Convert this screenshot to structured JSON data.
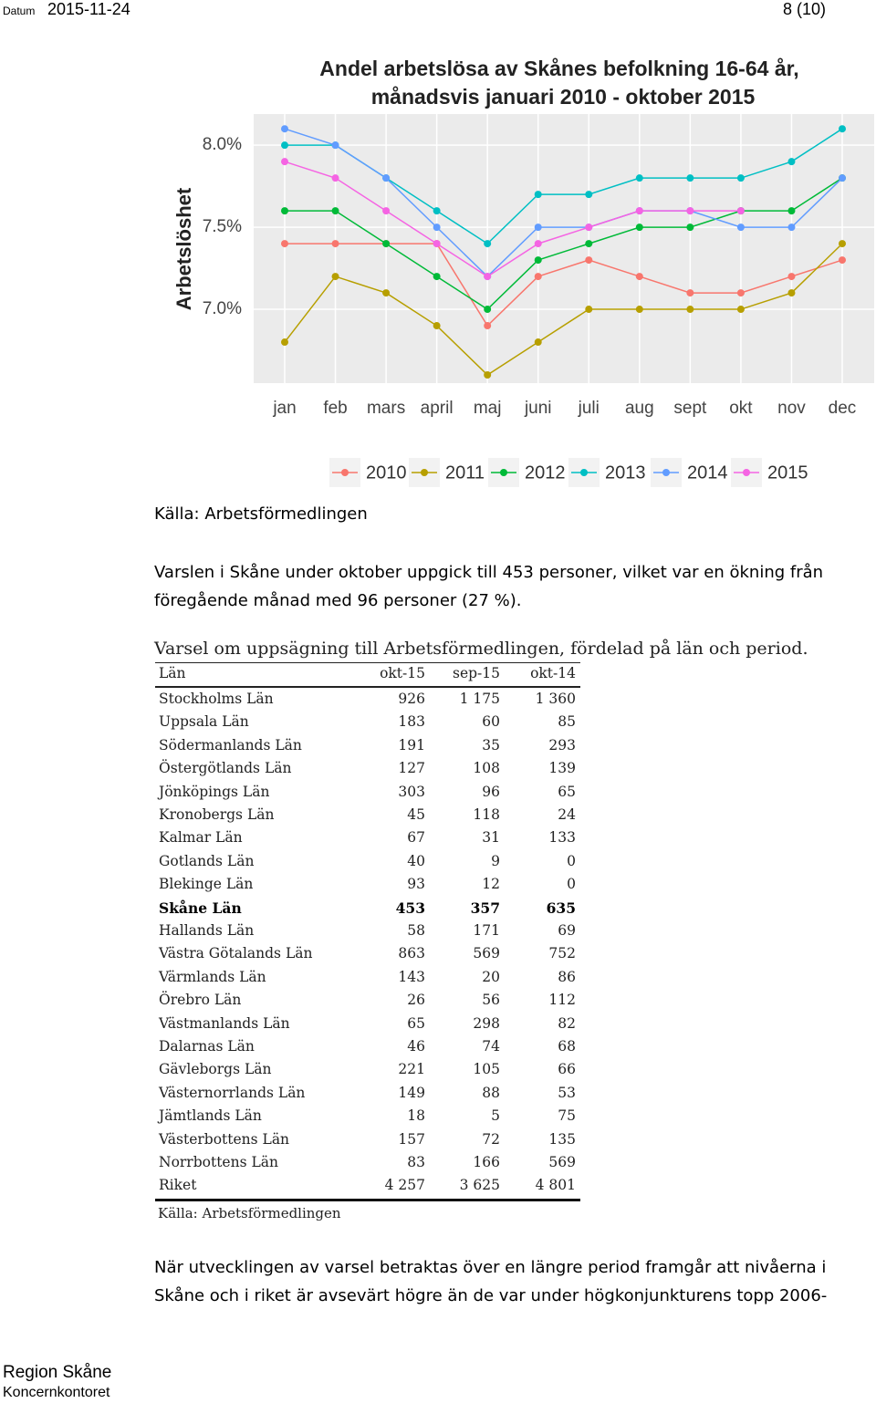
{
  "header": {
    "label": "Datum",
    "date": "2015-11-24",
    "page": "8 (10)"
  },
  "chart_data": {
    "type": "line",
    "title": [
      "Andel arbetslösa av Skånes befolkning 16-64 år,",
      "månadsvis januari 2010 - oktober 2015"
    ],
    "y_label": "Arbetslöshet",
    "categories": [
      "jan",
      "feb",
      "mars",
      "april",
      "maj",
      "juni",
      "juli",
      "aug",
      "sept",
      "okt",
      "nov",
      "dec"
    ],
    "series": [
      {
        "name": "2010",
        "color": "#f8766d",
        "values": [
          7.4,
          7.4,
          7.4,
          7.4,
          6.9,
          7.2,
          7.3,
          7.2,
          7.1,
          7.1,
          7.2,
          7.3
        ]
      },
      {
        "name": "2011",
        "color": "#b79f00",
        "values": [
          6.8,
          7.2,
          7.1,
          6.9,
          6.6,
          6.8,
          7.0,
          7.0,
          7.0,
          7.0,
          7.1,
          7.4
        ]
      },
      {
        "name": "2012",
        "color": "#00ba38",
        "values": [
          7.6,
          7.6,
          7.4,
          7.2,
          7.0,
          7.3,
          7.4,
          7.5,
          7.5,
          7.6,
          7.6,
          7.8
        ]
      },
      {
        "name": "2013",
        "color": "#00bfc4",
        "values": [
          8.0,
          8.0,
          7.8,
          7.6,
          7.4,
          7.7,
          7.7,
          7.8,
          7.8,
          7.8,
          7.9,
          8.1
        ]
      },
      {
        "name": "2014",
        "color": "#619cff",
        "values": [
          8.1,
          8.0,
          7.8,
          7.5,
          7.2,
          7.5,
          7.5,
          7.6,
          7.6,
          7.5,
          7.5,
          7.8
        ]
      },
      {
        "name": "2015",
        "color": "#f564e3",
        "values": [
          7.9,
          7.8,
          7.6,
          7.4,
          7.2,
          7.4,
          7.5,
          7.6,
          7.6,
          7.6,
          null,
          null
        ]
      }
    ],
    "ylim": [
      6.55,
      8.19
    ],
    "yticks": [
      {
        "value": 7.0,
        "label": "7.0%"
      },
      {
        "value": 7.5,
        "label": "7.5%"
      },
      {
        "value": 8.0,
        "label": "8.0%"
      }
    ],
    "grid": true,
    "legend": "bottom"
  },
  "source": "Källa: Arbetsförmedlingen",
  "paragraph_lines": [
    "Varslen i Skåne under oktober uppgick till 453 personer, vilket var en ökning från",
    "föregående månad med 96 personer (27 %)."
  ],
  "table": {
    "caption": "Varsel om uppsägning till Arbetsförmedlingen, fördelad på län och period.",
    "columns": [
      "Län",
      "okt-15",
      "sep-15",
      "okt-14"
    ],
    "rows": [
      [
        "Stockholms Län",
        "926",
        "1 175",
        "1 360"
      ],
      [
        "Uppsala Län",
        "183",
        "60",
        "85"
      ],
      [
        "Södermanlands Län",
        "191",
        "35",
        "293"
      ],
      [
        "Östergötlands Län",
        "127",
        "108",
        "139"
      ],
      [
        "Jönköpings Län",
        "303",
        "96",
        "65"
      ],
      [
        "Kronobergs Län",
        "45",
        "118",
        "24"
      ],
      [
        "Kalmar Län",
        "67",
        "31",
        "133"
      ],
      [
        "Gotlands Län",
        "40",
        "9",
        "0"
      ],
      [
        "Blekinge Län",
        "93",
        "12",
        "0"
      ],
      [
        "Skåne Län",
        "453",
        "357",
        "635"
      ],
      [
        "Hallands Län",
        "58",
        "171",
        "69"
      ],
      [
        "Västra Götalands Län",
        "863",
        "569",
        "752"
      ],
      [
        "Värmlands Län",
        "143",
        "20",
        "86"
      ],
      [
        "Örebro Län",
        "26",
        "56",
        "112"
      ],
      [
        "Västmanlands Län",
        "65",
        "298",
        "82"
      ],
      [
        "Dalarnas Län",
        "46",
        "74",
        "68"
      ],
      [
        "Gävleborgs Län",
        "221",
        "105",
        "66"
      ],
      [
        "Västernorrlands Län",
        "149",
        "88",
        "53"
      ],
      [
        "Jämtlands Län",
        "18",
        "5",
        "75"
      ],
      [
        "Västerbottens Län",
        "157",
        "72",
        "135"
      ],
      [
        "Norrbottens Län",
        "83",
        "166",
        "569"
      ],
      [
        "Riket",
        "4 257",
        "3 625",
        "4 801"
      ]
    ],
    "bold_row_index": 9,
    "source": "Källa: Arbetsförmedlingen"
  },
  "closing_lines": [
    "När utvecklingen av varsel betraktas över en längre period framgår att nivåerna i",
    "Skåne och i riket är avsevärt högre än de var under högkonjunkturens topp 2006-"
  ],
  "footer": {
    "org": "Region Skåne",
    "unit": "Koncernkontoret"
  }
}
